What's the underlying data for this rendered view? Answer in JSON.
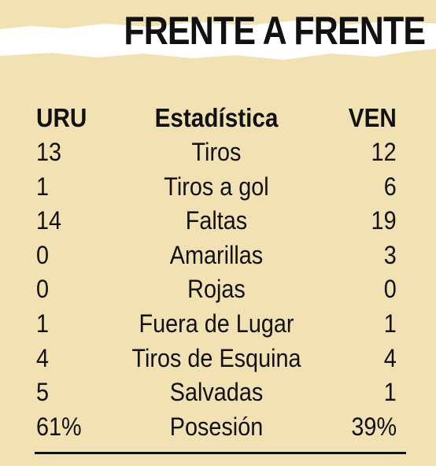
{
  "title": "FRENTE A FRENTE",
  "header": {
    "left": "URU",
    "center": "Estadística",
    "right": "VEN"
  },
  "rows": [
    {
      "left": "13",
      "label": "Tiros",
      "right": "12"
    },
    {
      "left": "1",
      "label": "Tiros a gol",
      "right": "6"
    },
    {
      "left": "14",
      "label": "Faltas",
      "right": "19"
    },
    {
      "left": "0",
      "label": "Amarillas",
      "right": "3"
    },
    {
      "left": "0",
      "label": "Rojas",
      "right": "0"
    },
    {
      "left": "1",
      "label": "Fuera de Lugar",
      "right": "1"
    },
    {
      "left": "4",
      "label": "Tiros de Esquina",
      "right": "4"
    },
    {
      "left": "5",
      "label": "Salvadas",
      "right": "1"
    },
    {
      "left": "61%",
      "label": "Posesión",
      "right": "39%"
    }
  ],
  "colors": {
    "background": "#f2e1b3",
    "banner": "#ffffff",
    "text": "#111111"
  }
}
